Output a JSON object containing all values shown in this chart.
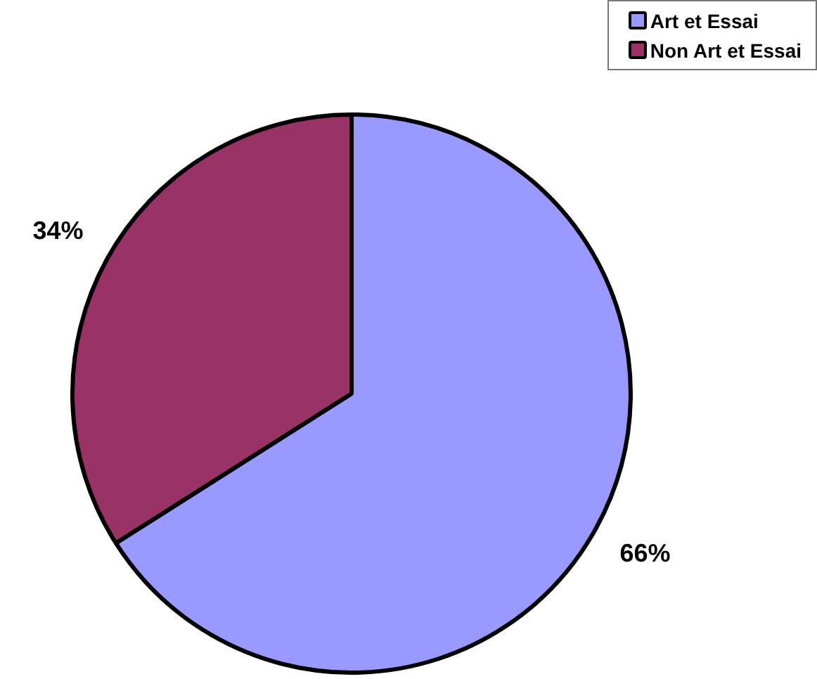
{
  "chart_data": {
    "type": "pie",
    "categories": [
      "Art et Essai",
      "Non Art et Essai"
    ],
    "values": [
      66,
      34
    ],
    "colors": [
      "#9999ff",
      "#993366"
    ],
    "value_labels": [
      "66%",
      "34%"
    ],
    "legend": "top right"
  }
}
